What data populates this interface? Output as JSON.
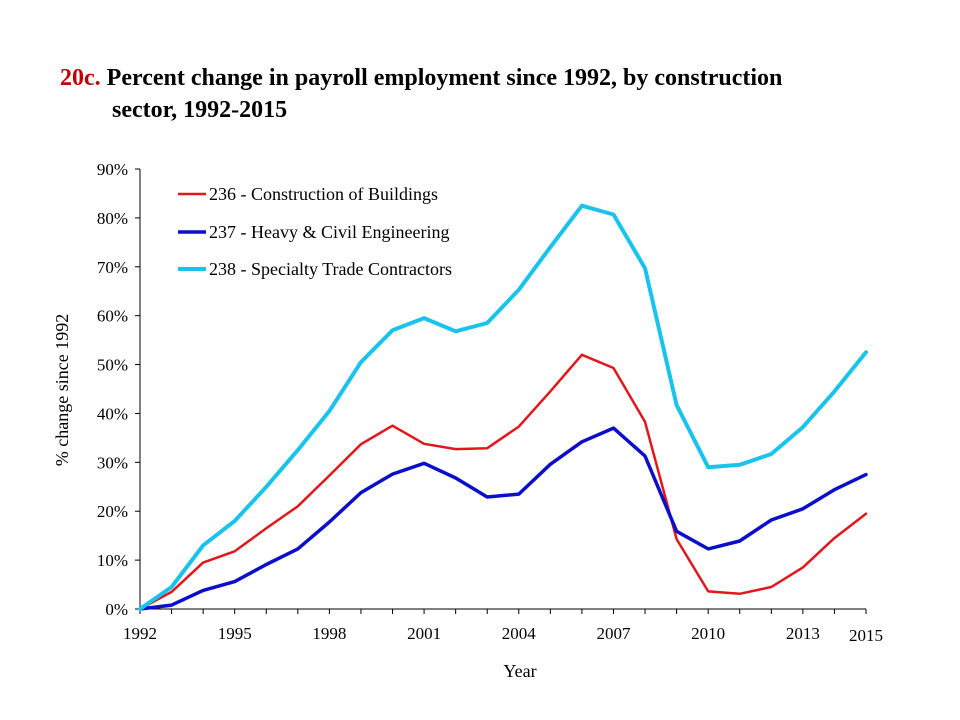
{
  "title": {
    "prefix": "20c.",
    "line1": "Percent change in payroll employment since 1992, by construction",
    "line2": "sector, 1992-2015"
  },
  "colors": {
    "prefix": "#c00000"
  },
  "chart_data": {
    "type": "line",
    "xlabel": "Year",
    "ylabel": "% change since 1992",
    "ylim": [
      0,
      90
    ],
    "xlim": [
      1992,
      2015
    ],
    "x_ticks": [
      1992,
      1995,
      1998,
      2001,
      2004,
      2007,
      2010,
      2013,
      2015
    ],
    "y_ticks": [
      "0%",
      "10%",
      "20%",
      "30%",
      "40%",
      "50%",
      "60%",
      "70%",
      "80%",
      "90%"
    ],
    "grid": false,
    "legend": "top-left",
    "x": [
      1992,
      1993,
      1994,
      1995,
      1996,
      1997,
      1998,
      1999,
      2000,
      2001,
      2002,
      2003,
      2004,
      2005,
      2006,
      2007,
      2008,
      2009,
      2010,
      2011,
      2012,
      2013,
      2014,
      2015
    ],
    "series": [
      {
        "name": "236 - Construction of Buildings",
        "color": "#e3161b",
        "values": [
          0,
          3.5,
          9.5,
          11.8,
          16.5,
          21,
          27.3,
          33.7,
          37.5,
          33.8,
          32.7,
          32.9,
          37.3,
          44.5,
          52,
          49.3,
          38.3,
          14.3,
          3.6,
          3.1,
          4.5,
          8.5,
          14.5,
          19.5
        ]
      },
      {
        "name": "237 - Heavy & Civil Engineering",
        "color": "#0b0fc9",
        "values": [
          0,
          0.8,
          3.8,
          5.6,
          9.1,
          12.3,
          17.8,
          23.8,
          27.6,
          29.8,
          26.8,
          22.9,
          23.5,
          29.6,
          34.2,
          37,
          31.3,
          15.9,
          12.3,
          13.9,
          18.2,
          20.5,
          24.4,
          27.5
        ]
      },
      {
        "name": "238 - Specialty Trade Contractors",
        "color": "#19c3ee",
        "values": [
          0,
          4.5,
          13,
          18,
          25,
          32.5,
          40.5,
          50.5,
          57,
          59.5,
          56.8,
          58.5,
          65.3,
          74,
          82.5,
          80.7,
          69.7,
          41.7,
          29,
          29.5,
          31.7,
          37.2,
          44.5,
          52.5
        ]
      }
    ]
  }
}
